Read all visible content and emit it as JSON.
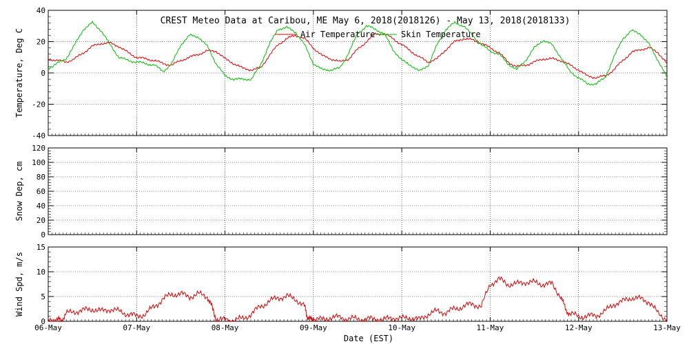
{
  "title": "CREST Meteo Data at Caribou, ME   May  6, 2018(2018126) - May 13, 2018(2018133)",
  "xlabel": "Date (EST)",
  "x_ticks": [
    "06-May",
    "07-May",
    "08-May",
    "09-May",
    "10-May",
    "11-May",
    "12-May",
    "13-May"
  ],
  "colors": {
    "air": "#dd0000",
    "skin": "#00bb00",
    "wind": "#dd0000",
    "grid": "#000000"
  },
  "chart_data": [
    {
      "type": "line",
      "ylabel": "Temperature, Deg C",
      "ylim": [
        -40,
        40
      ],
      "yticks": [
        -40,
        -20,
        0,
        20,
        40
      ],
      "x_unit": "days since 06-May 00:00 EST",
      "xlim": [
        0,
        7
      ],
      "legend": "top-center",
      "series": [
        {
          "name": "Air Temperature",
          "color": "#dd0000",
          "points": [
            [
              0.0,
              9
            ],
            [
              0.1,
              8
            ],
            [
              0.2,
              7
            ],
            [
              0.3,
              9
            ],
            [
              0.4,
              13
            ],
            [
              0.5,
              17
            ],
            [
              0.6,
              19
            ],
            [
              0.7,
              19
            ],
            [
              0.8,
              17
            ],
            [
              0.9,
              13
            ],
            [
              1.0,
              10
            ],
            [
              1.1,
              9
            ],
            [
              1.2,
              8
            ],
            [
              1.3,
              6
            ],
            [
              1.4,
              5
            ],
            [
              1.5,
              8
            ],
            [
              1.6,
              10
            ],
            [
              1.7,
              12
            ],
            [
              1.8,
              14
            ],
            [
              1.9,
              14
            ],
            [
              2.0,
              9
            ],
            [
              2.1,
              6
            ],
            [
              2.2,
              3
            ],
            [
              2.3,
              2
            ],
            [
              2.4,
              3
            ],
            [
              2.5,
              11
            ],
            [
              2.6,
              18
            ],
            [
              2.7,
              22
            ],
            [
              2.8,
              24
            ],
            [
              2.9,
              22
            ],
            [
              3.0,
              16
            ],
            [
              3.1,
              11
            ],
            [
              3.2,
              9
            ],
            [
              3.3,
              7
            ],
            [
              3.4,
              9
            ],
            [
              3.5,
              15
            ],
            [
              3.6,
              20
            ],
            [
              3.7,
              25
            ],
            [
              3.8,
              25
            ],
            [
              3.9,
              22
            ],
            [
              4.0,
              18
            ],
            [
              4.1,
              14
            ],
            [
              4.2,
              10
            ],
            [
              4.3,
              7
            ],
            [
              4.4,
              9
            ],
            [
              4.5,
              15
            ],
            [
              4.6,
              20
            ],
            [
              4.7,
              22
            ],
            [
              4.8,
              21
            ],
            [
              4.9,
              19
            ],
            [
              5.0,
              16
            ],
            [
              5.1,
              13
            ],
            [
              5.2,
              7
            ],
            [
              5.3,
              4
            ],
            [
              5.4,
              5
            ],
            [
              5.5,
              7
            ],
            [
              5.6,
              9
            ],
            [
              5.7,
              9
            ],
            [
              5.8,
              8
            ],
            [
              5.9,
              5
            ],
            [
              6.0,
              2
            ],
            [
              6.1,
              -2
            ],
            [
              6.2,
              -3
            ],
            [
              6.3,
              -2
            ],
            [
              6.4,
              2
            ],
            [
              6.5,
              8
            ],
            [
              6.6,
              13
            ],
            [
              6.7,
              15
            ],
            [
              6.8,
              16
            ],
            [
              6.9,
              13
            ],
            [
              7.0,
              6
            ]
          ]
        },
        {
          "name": "Skin Temperature",
          "color": "#00bb00",
          "points": [
            [
              0.0,
              3
            ],
            [
              0.1,
              6
            ],
            [
              0.2,
              9
            ],
            [
              0.3,
              18
            ],
            [
              0.4,
              28
            ],
            [
              0.5,
              32
            ],
            [
              0.6,
              27
            ],
            [
              0.7,
              18
            ],
            [
              0.8,
              10
            ],
            [
              0.9,
              8
            ],
            [
              1.0,
              7
            ],
            [
              1.1,
              6
            ],
            [
              1.2,
              5
            ],
            [
              1.3,
              1
            ],
            [
              1.4,
              6
            ],
            [
              1.5,
              18
            ],
            [
              1.6,
              24
            ],
            [
              1.7,
              23
            ],
            [
              1.8,
              17
            ],
            [
              1.9,
              6
            ],
            [
              2.0,
              -2
            ],
            [
              2.1,
              -4
            ],
            [
              2.2,
              -4
            ],
            [
              2.3,
              -4
            ],
            [
              2.4,
              5
            ],
            [
              2.5,
              18
            ],
            [
              2.6,
              28
            ],
            [
              2.7,
              29
            ],
            [
              2.8,
              26
            ],
            [
              2.9,
              18
            ],
            [
              3.0,
              6
            ],
            [
              3.1,
              2
            ],
            [
              3.2,
              2
            ],
            [
              3.3,
              3
            ],
            [
              3.4,
              13
            ],
            [
              3.5,
              25
            ],
            [
              3.6,
              30
            ],
            [
              3.7,
              28
            ],
            [
              3.8,
              25
            ],
            [
              3.9,
              15
            ],
            [
              4.0,
              8
            ],
            [
              4.1,
              5
            ],
            [
              4.2,
              1
            ],
            [
              4.3,
              5
            ],
            [
              4.4,
              18
            ],
            [
              4.5,
              28
            ],
            [
              4.6,
              32
            ],
            [
              4.7,
              30
            ],
            [
              4.8,
              24
            ],
            [
              4.9,
              18
            ],
            [
              5.0,
              14
            ],
            [
              5.1,
              12
            ],
            [
              5.2,
              6
            ],
            [
              5.3,
              2
            ],
            [
              5.4,
              8
            ],
            [
              5.5,
              16
            ],
            [
              5.6,
              21
            ],
            [
              5.7,
              18
            ],
            [
              5.8,
              10
            ],
            [
              5.9,
              1
            ],
            [
              6.0,
              -3
            ],
            [
              6.1,
              -7
            ],
            [
              6.2,
              -7
            ],
            [
              6.3,
              -3
            ],
            [
              6.4,
              10
            ],
            [
              6.5,
              22
            ],
            [
              6.6,
              27
            ],
            [
              6.7,
              25
            ],
            [
              6.8,
              18
            ],
            [
              6.9,
              8
            ],
            [
              7.0,
              -3
            ]
          ]
        }
      ]
    },
    {
      "type": "line",
      "ylabel": "Snow Dep, cm",
      "ylim": [
        0,
        120
      ],
      "yticks": [
        0,
        20,
        40,
        60,
        80,
        100,
        120
      ],
      "xlim": [
        0,
        7
      ],
      "series": []
    },
    {
      "type": "line",
      "ylabel": "Wind Spd, m/s",
      "ylim": [
        0,
        15
      ],
      "yticks": [
        0,
        5,
        10,
        15
      ],
      "x_unit": "days since 06-May 00:00 EST",
      "xlim": [
        0,
        7
      ],
      "series": [
        {
          "name": "Wind Speed",
          "color": "#dd0000",
          "points": [
            [
              0.0,
              0.5
            ],
            [
              0.1,
              0.3
            ],
            [
              0.15,
              0.2
            ],
            [
              0.2,
              1.5
            ],
            [
              0.3,
              2.0
            ],
            [
              0.4,
              2.2
            ],
            [
              0.5,
              2.5
            ],
            [
              0.6,
              2.0
            ],
            [
              0.7,
              2.5
            ],
            [
              0.8,
              2.0
            ],
            [
              0.9,
              1.5
            ],
            [
              1.0,
              1.0
            ],
            [
              1.1,
              1.5
            ],
            [
              1.2,
              3.0
            ],
            [
              1.3,
              4.5
            ],
            [
              1.4,
              5.5
            ],
            [
              1.5,
              5.5
            ],
            [
              1.6,
              5.0
            ],
            [
              1.7,
              5.5
            ],
            [
              1.8,
              5.0
            ],
            [
              1.85,
              3.0
            ],
            [
              1.9,
              0.5
            ],
            [
              2.0,
              0.2
            ],
            [
              2.1,
              0.3
            ],
            [
              2.2,
              0.5
            ],
            [
              2.3,
              1.5
            ],
            [
              2.4,
              3.0
            ],
            [
              2.5,
              4.0
            ],
            [
              2.6,
              4.8
            ],
            [
              2.7,
              5.0
            ],
            [
              2.8,
              4.5
            ],
            [
              2.9,
              3.0
            ],
            [
              2.93,
              1.0
            ],
            [
              2.97,
              0.3
            ],
            [
              3.0,
              0.5
            ],
            [
              3.1,
              0.3
            ],
            [
              3.2,
              0.8
            ],
            [
              3.3,
              0.8
            ],
            [
              3.4,
              0.5
            ],
            [
              3.5,
              0.5
            ],
            [
              3.6,
              0.4
            ],
            [
              3.7,
              0.5
            ],
            [
              3.8,
              0.3
            ],
            [
              3.9,
              0.8
            ],
            [
              4.0,
              0.5
            ],
            [
              4.1,
              0.8
            ],
            [
              4.2,
              0.3
            ],
            [
              4.3,
              1.5
            ],
            [
              4.4,
              2.0
            ],
            [
              4.5,
              1.8
            ],
            [
              4.6,
              2.5
            ],
            [
              4.7,
              3.0
            ],
            [
              4.8,
              3.5
            ],
            [
              4.9,
              3.0
            ],
            [
              5.0,
              7.5
            ],
            [
              5.1,
              8.5
            ],
            [
              5.2,
              7.5
            ],
            [
              5.3,
              7.5
            ],
            [
              5.4,
              8.0
            ],
            [
              5.5,
              7.8
            ],
            [
              5.6,
              7.5
            ],
            [
              5.7,
              7.5
            ],
            [
              5.8,
              5.0
            ],
            [
              5.85,
              2.5
            ],
            [
              5.9,
              1.5
            ],
            [
              6.0,
              1.0
            ],
            [
              6.1,
              1.0
            ],
            [
              6.2,
              1.2
            ],
            [
              6.3,
              2.0
            ],
            [
              6.4,
              3.5
            ],
            [
              6.5,
              4.0
            ],
            [
              6.6,
              4.8
            ],
            [
              6.7,
              4.5
            ],
            [
              6.8,
              4.0
            ],
            [
              6.9,
              1.5
            ],
            [
              7.0,
              0.5
            ]
          ]
        }
      ]
    }
  ]
}
